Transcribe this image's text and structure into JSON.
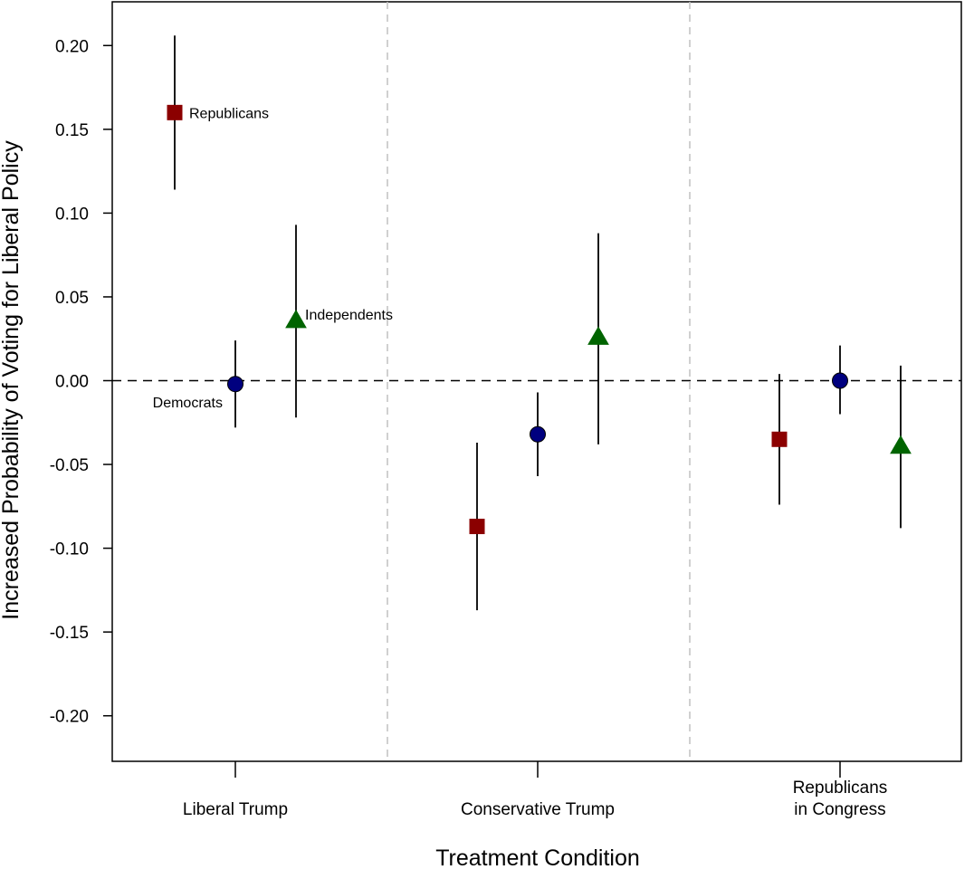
{
  "chart_data": {
    "type": "scatter",
    "title": "",
    "xlabel": "Treatment Condition",
    "ylabel": "Increased Probability of Voting for Liberal Policy",
    "ylim": [
      -0.225,
      0.225
    ],
    "yticks": [
      -0.2,
      -0.15,
      -0.1,
      -0.05,
      0.0,
      0.05,
      0.1,
      0.15,
      0.2
    ],
    "ytick_labels": [
      "-0.20",
      "-0.15",
      "-0.10",
      "-0.05",
      "0.00",
      "0.05",
      "0.10",
      "0.15",
      "0.20"
    ],
    "categories": [
      {
        "label_lines": [
          "Liberal Trump"
        ]
      },
      {
        "label_lines": [
          "Conservative Trump"
        ]
      },
      {
        "label_lines": [
          "Republicans",
          "in Congress"
        ]
      }
    ],
    "reference_line": 0.0,
    "grid": false,
    "legend": "direct labels next to first group",
    "series": [
      {
        "name": "Republicans",
        "marker": "square",
        "color": "#8B0000",
        "offset": -1,
        "points": [
          {
            "estimate": 0.16,
            "lower": 0.114,
            "upper": 0.206
          },
          {
            "estimate": -0.087,
            "lower": -0.137,
            "upper": -0.037
          },
          {
            "estimate": -0.035,
            "lower": -0.074,
            "upper": 0.004
          }
        ]
      },
      {
        "name": "Democrats",
        "marker": "circle",
        "color": "#00007F",
        "offset": 0,
        "points": [
          {
            "estimate": -0.002,
            "lower": -0.028,
            "upper": 0.024
          },
          {
            "estimate": -0.032,
            "lower": -0.057,
            "upper": -0.007
          },
          {
            "estimate": 0.0,
            "lower": -0.02,
            "upper": 0.021
          }
        ]
      },
      {
        "name": "Independents",
        "marker": "triangle",
        "color": "#006400",
        "offset": 1,
        "points": [
          {
            "estimate": 0.036,
            "lower": -0.022,
            "upper": 0.093
          },
          {
            "estimate": 0.026,
            "lower": -0.038,
            "upper": 0.088
          },
          {
            "estimate": -0.039,
            "lower": -0.088,
            "upper": 0.009
          }
        ]
      }
    ]
  }
}
